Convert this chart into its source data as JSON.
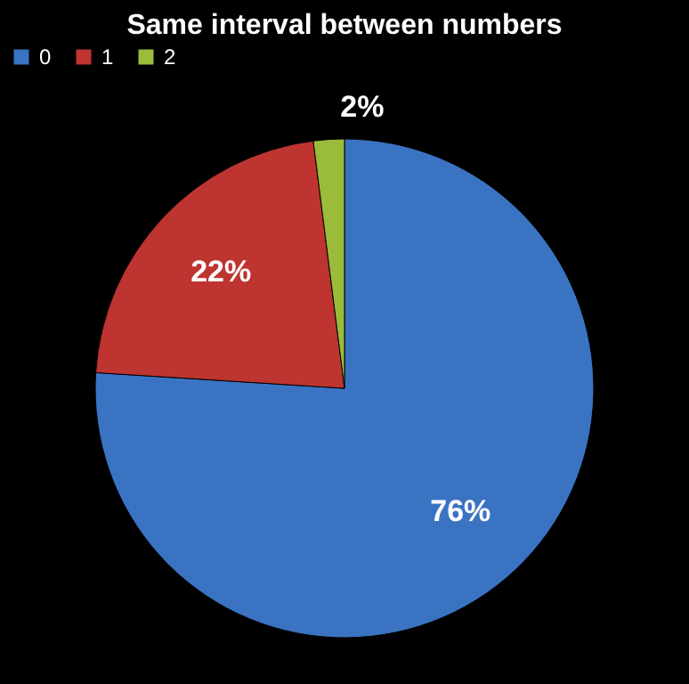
{
  "chart_data": {
    "type": "pie",
    "title": "Same interval between numbers",
    "categories": [
      "0",
      "1",
      "2"
    ],
    "values": [
      76,
      22,
      2
    ],
    "value_labels": [
      "76%",
      "22%",
      "2%"
    ],
    "colors": [
      "#3b73c3",
      "#be3431",
      "#9bbb3b"
    ],
    "legend": "top"
  }
}
